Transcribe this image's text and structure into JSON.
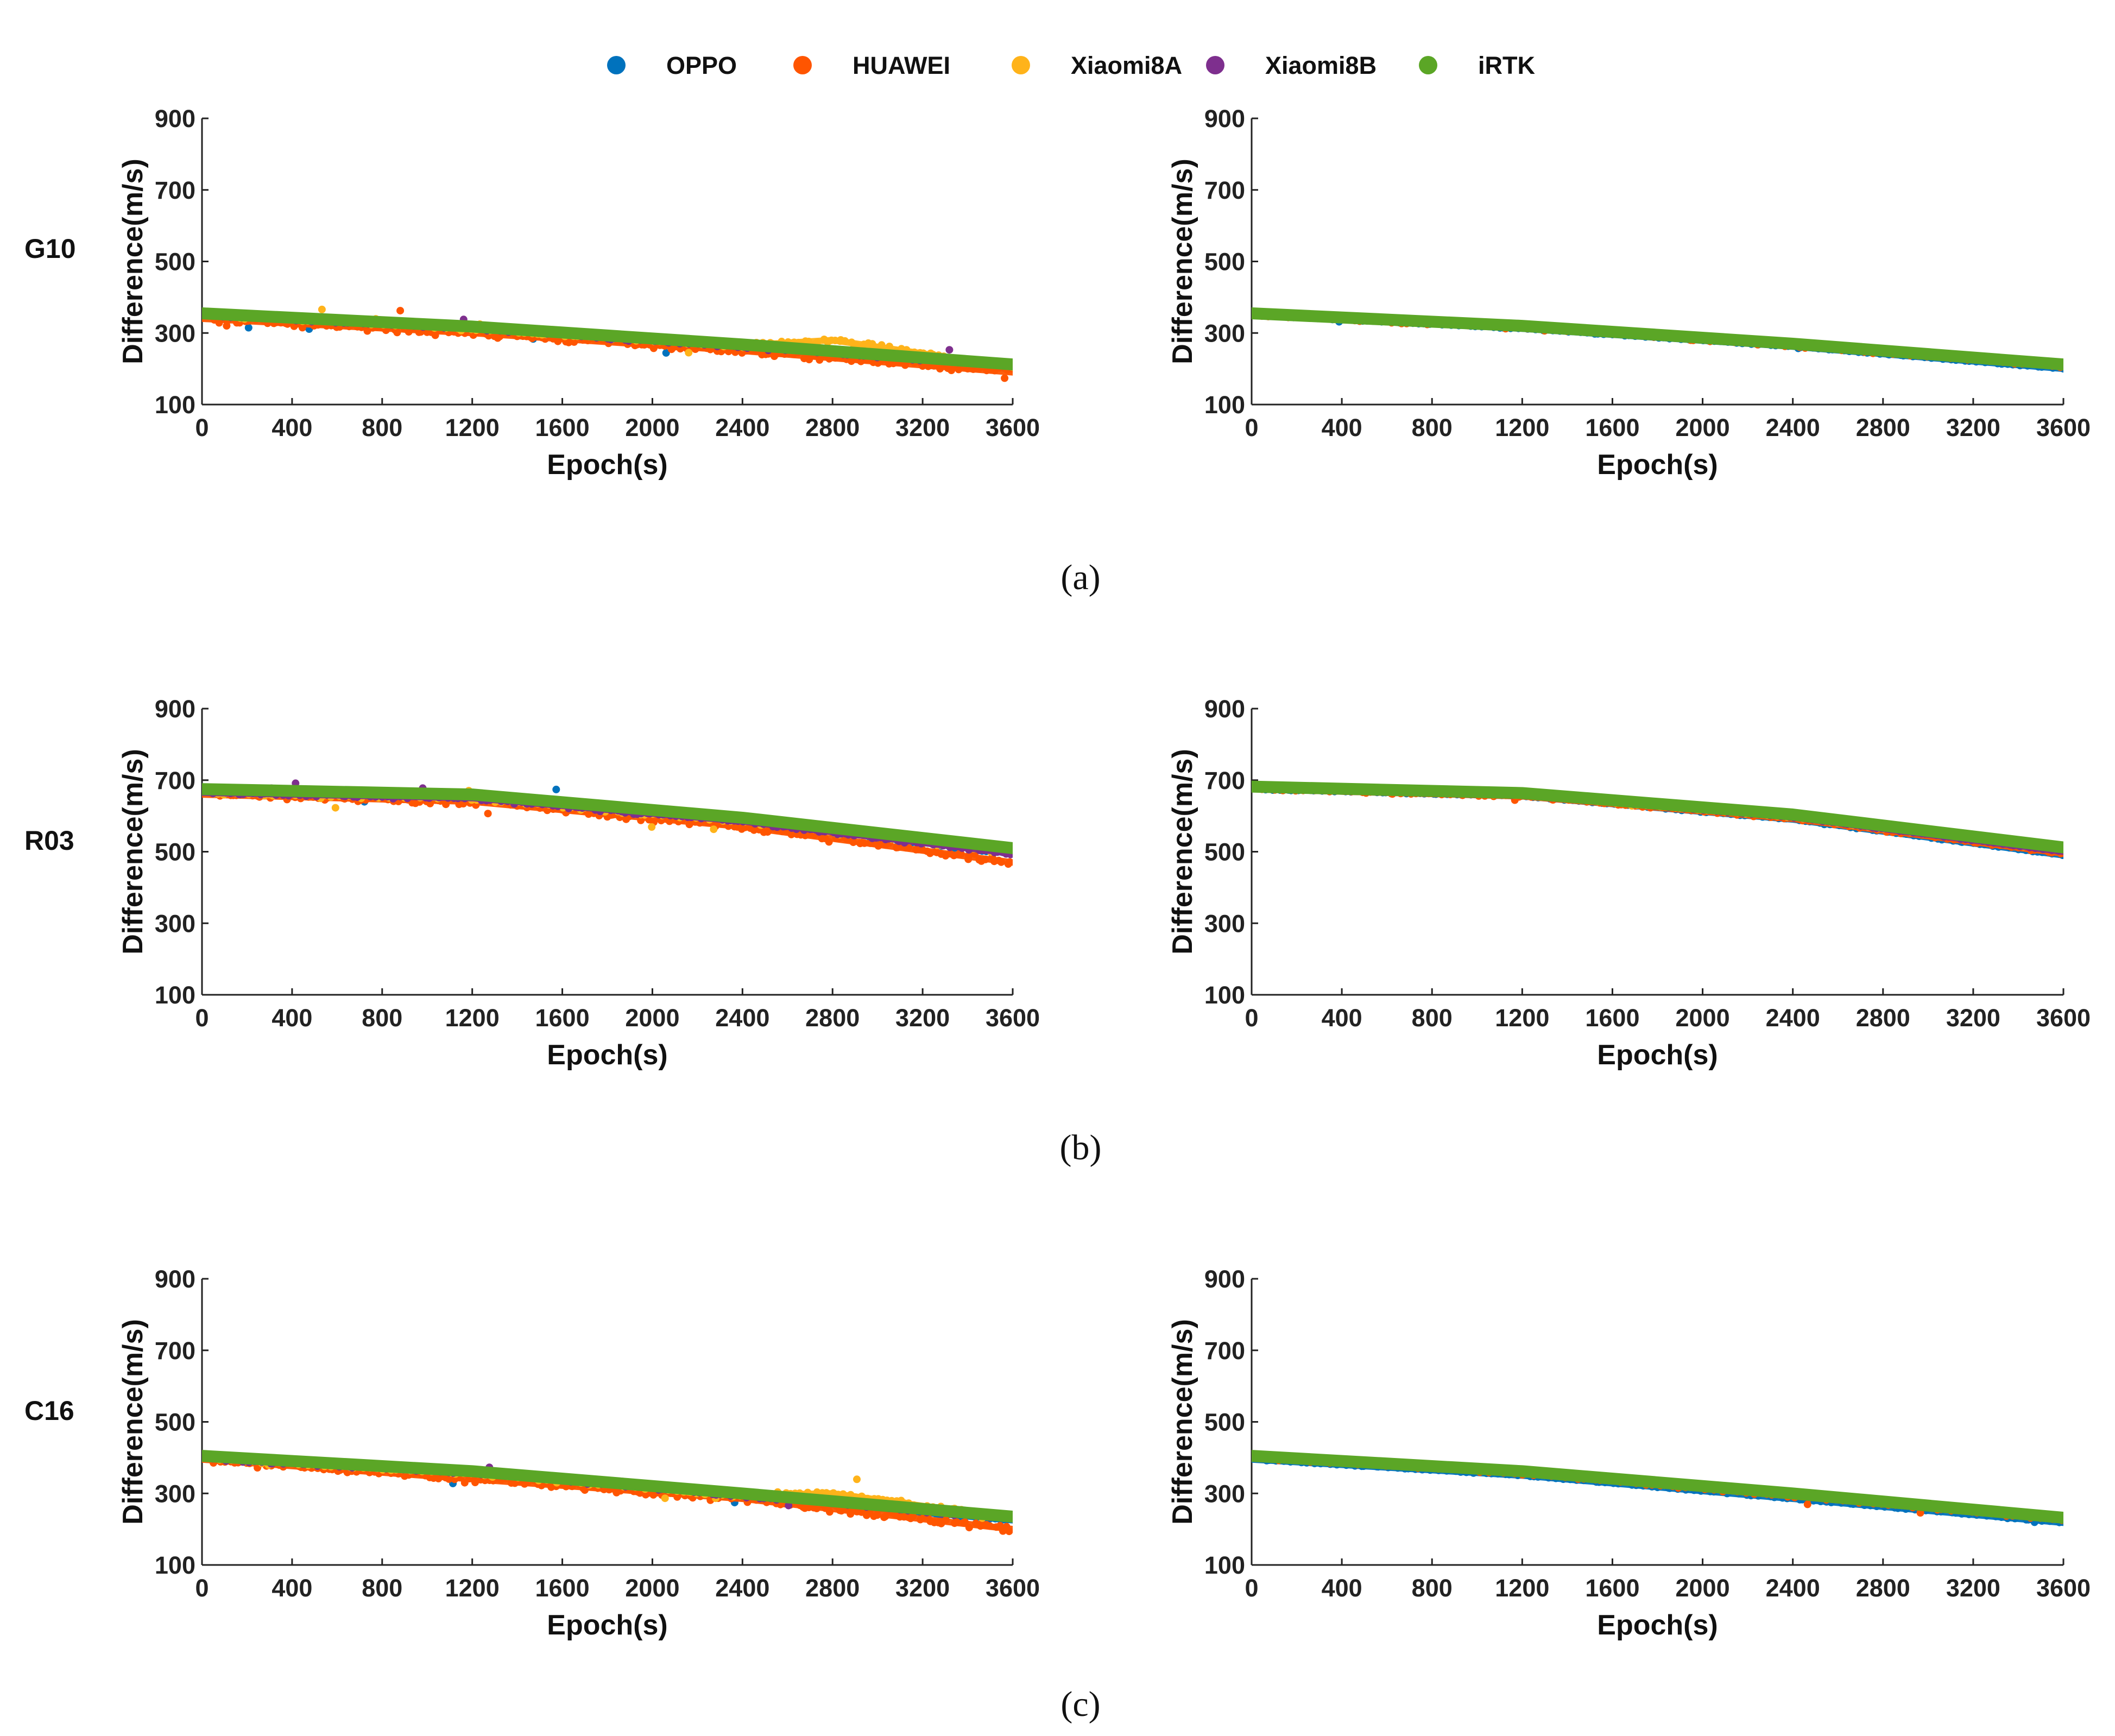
{
  "legend": {
    "entries": [
      {
        "name": "OPPO",
        "color": "#0072BD"
      },
      {
        "name": "HUAWEI",
        "color": "#FF5500"
      },
      {
        "name": "Xiaomi8A",
        "color": "#FFB31A"
      },
      {
        "name": "Xiaomi8B",
        "color": "#7E2F8E"
      },
      {
        "name": "iRTK",
        "color": "#5BA626"
      }
    ]
  },
  "panel_labels": [
    "(a)",
    "(b)",
    "(c)"
  ],
  "row_labels": [
    "G10",
    "R03",
    "C16"
  ],
  "chart_data": [
    {
      "type": "scatter",
      "row": "G10",
      "column": "left",
      "xlabel": "Epoch(s)",
      "ylabel": "Difference(m/s)",
      "xlim": [
        0,
        3600
      ],
      "ylim": [
        100,
        900
      ],
      "xticks": [
        0,
        400,
        800,
        1200,
        1600,
        2000,
        2400,
        2800,
        3200,
        3600
      ],
      "yticks": [
        100,
        300,
        500,
        700,
        900
      ],
      "series": [
        {
          "name": "OPPO",
          "x": [
            0,
            1200,
            2400,
            3600
          ],
          "y": [
            350,
            310,
            260,
            200
          ]
        },
        {
          "name": "HUAWEI",
          "x": [
            0,
            1200,
            2400,
            3600
          ],
          "y": [
            340,
            300,
            250,
            190
          ]
        },
        {
          "name": "Xiaomi8A",
          "x": [
            0,
            1200,
            2400,
            2800,
            3600
          ],
          "y": [
            352,
            312,
            265,
            280,
            205
          ]
        },
        {
          "name": "Xiaomi8B",
          "x": [
            0,
            1200,
            2400,
            3600
          ],
          "y": [
            352,
            315,
            262,
            210
          ]
        },
        {
          "name": "iRTK",
          "x": [
            0,
            1200,
            2400,
            3600
          ],
          "y": [
            355,
            318,
            268,
            212
          ]
        }
      ]
    },
    {
      "type": "scatter",
      "row": "G10",
      "column": "right",
      "xlabel": "Epoch(s)",
      "ylabel": "Difference(m/s)",
      "xlim": [
        0,
        3600
      ],
      "ylim": [
        100,
        900
      ],
      "xticks": [
        0,
        400,
        800,
        1200,
        1600,
        2000,
        2400,
        2800,
        3200,
        3600
      ],
      "yticks": [
        100,
        300,
        500,
        700,
        900
      ],
      "series": [
        {
          "name": "OPPO",
          "x": [
            0,
            1200,
            2400,
            3600
          ],
          "y": [
            350,
            312,
            262,
            200
          ]
        },
        {
          "name": "HUAWEI",
          "x": [
            0,
            1200,
            2400,
            3600
          ],
          "y": [
            350,
            314,
            265,
            205
          ]
        },
        {
          "name": "Xiaomi8A",
          "x": [
            0,
            1200,
            2400,
            3600
          ],
          "y": [
            352,
            316,
            267,
            208
          ]
        },
        {
          "name": "Xiaomi8B",
          "x": [
            0,
            1200,
            2400,
            3600
          ],
          "y": [
            352,
            317,
            268,
            208
          ]
        },
        {
          "name": "iRTK",
          "x": [
            0,
            1200,
            2400,
            3600
          ],
          "y": [
            355,
            320,
            270,
            212
          ]
        }
      ]
    },
    {
      "type": "scatter",
      "row": "R03",
      "column": "left",
      "xlabel": "Epoch(s)",
      "ylabel": "Difference(m/s)",
      "xlim": [
        0,
        3600
      ],
      "ylim": [
        100,
        900
      ],
      "xticks": [
        0,
        400,
        800,
        1200,
        1600,
        2000,
        2400,
        2800,
        3200,
        3600
      ],
      "yticks": [
        100,
        300,
        500,
        700,
        900
      ],
      "series": [
        {
          "name": "OPPO",
          "x": [
            0,
            1200,
            2400,
            3600
          ],
          "y": [
            670,
            655,
            585,
            495
          ]
        },
        {
          "name": "HUAWEI",
          "x": [
            0,
            1200,
            2400,
            3600
          ],
          "y": [
            660,
            640,
            570,
            470
          ]
        },
        {
          "name": "Xiaomi8A",
          "x": [
            0,
            1200,
            2400,
            3600
          ],
          "y": [
            665,
            650,
            585,
            500
          ]
        },
        {
          "name": "Xiaomi8B",
          "x": [
            0,
            1200,
            2400,
            3600
          ],
          "y": [
            665,
            650,
            585,
            495
          ]
        },
        {
          "name": "iRTK",
          "x": [
            0,
            1200,
            2400,
            3600
          ],
          "y": [
            675,
            660,
            595,
            510
          ]
        }
      ]
    },
    {
      "type": "scatter",
      "row": "R03",
      "column": "right",
      "xlabel": "Epoch(s)",
      "ylabel": "Difference(m/s)",
      "xlim": [
        0,
        3600
      ],
      "ylim": [
        100,
        900
      ],
      "xticks": [
        0,
        400,
        800,
        1200,
        1600,
        2000,
        2400,
        2800,
        3200,
        3600
      ],
      "yticks": [
        100,
        300,
        500,
        700,
        900
      ],
      "series": [
        {
          "name": "OPPO",
          "x": [
            0,
            1200,
            2400,
            3600
          ],
          "y": [
            675,
            655,
            590,
            490
          ]
        },
        {
          "name": "HUAWEI",
          "x": [
            0,
            1200,
            2400,
            3600
          ],
          "y": [
            675,
            655,
            592,
            495
          ]
        },
        {
          "name": "Xiaomi8A",
          "x": [
            0,
            1200,
            2400,
            3600
          ],
          "y": [
            678,
            658,
            596,
            502
          ]
        },
        {
          "name": "Xiaomi8B",
          "x": [
            0,
            1200,
            2400,
            3600
          ],
          "y": [
            678,
            658,
            596,
            500
          ]
        },
        {
          "name": "iRTK",
          "x": [
            0,
            1200,
            2400,
            3600
          ],
          "y": [
            682,
            664,
            604,
            512
          ]
        }
      ]
    },
    {
      "type": "scatter",
      "row": "C16",
      "column": "left",
      "xlabel": "Epoch(s)",
      "ylabel": "Difference(m/s)",
      "xlim": [
        0,
        3600
      ],
      "ylim": [
        100,
        900
      ],
      "xticks": [
        0,
        400,
        800,
        1200,
        1600,
        2000,
        2400,
        2800,
        3200,
        3600
      ],
      "yticks": [
        100,
        300,
        500,
        700,
        900
      ],
      "series": [
        {
          "name": "OPPO",
          "x": [
            0,
            1200,
            2400,
            3600
          ],
          "y": [
            400,
            355,
            290,
            225
          ]
        },
        {
          "name": "HUAWEI",
          "x": [
            0,
            1200,
            2400,
            3600
          ],
          "y": [
            395,
            340,
            285,
            200
          ]
        },
        {
          "name": "Xiaomi8A",
          "x": [
            0,
            1200,
            2400,
            2800,
            3600
          ],
          "y": [
            400,
            355,
            295,
            300,
            230
          ]
        },
        {
          "name": "Xiaomi8B",
          "x": [
            0,
            1200,
            2400,
            3600
          ],
          "y": [
            400,
            358,
            295,
            232
          ]
        },
        {
          "name": "iRTK",
          "x": [
            0,
            1200,
            2400,
            3600
          ],
          "y": [
            405,
            362,
            300,
            235
          ]
        }
      ]
    },
    {
      "type": "scatter",
      "row": "C16",
      "column": "right",
      "xlabel": "Epoch(s)",
      "ylabel": "Difference(m/s)",
      "xlim": [
        0,
        3600
      ],
      "ylim": [
        100,
        900
      ],
      "xticks": [
        0,
        400,
        800,
        1200,
        1600,
        2000,
        2400,
        2800,
        3200,
        3600
      ],
      "yticks": [
        100,
        300,
        500,
        700,
        900
      ],
      "series": [
        {
          "name": "OPPO",
          "x": [
            0,
            1200,
            2400,
            3600
          ],
          "y": [
            395,
            350,
            285,
            218
          ]
        },
        {
          "name": "HUAWEI",
          "x": [
            0,
            1200,
            2400,
            3600
          ],
          "y": [
            400,
            355,
            292,
            225
          ]
        },
        {
          "name": "Xiaomi8A",
          "x": [
            0,
            1200,
            2400,
            3600
          ],
          "y": [
            402,
            358,
            295,
            228
          ]
        },
        {
          "name": "Xiaomi8B",
          "x": [
            0,
            1200,
            2400,
            3600
          ],
          "y": [
            402,
            358,
            295,
            228
          ]
        },
        {
          "name": "iRTK",
          "x": [
            0,
            1200,
            2400,
            3600
          ],
          "y": [
            405,
            362,
            300,
            232
          ]
        }
      ]
    }
  ]
}
